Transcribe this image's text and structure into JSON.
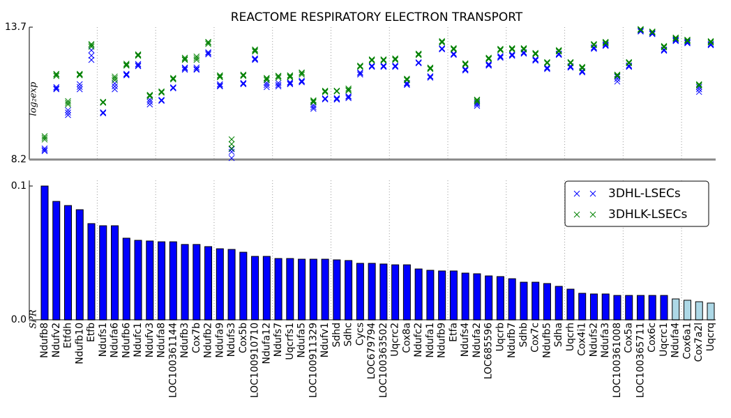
{
  "chart_data": [
    {
      "type": "scatter",
      "title": "REACTOME RESPIRATORY ELECTRON TRANSPORT",
      "ylabel": "log₂exp",
      "ylim": [
        8.2,
        13.7
      ],
      "yticks": [
        8.2,
        13.7
      ],
      "legend": "upper right",
      "marker": "x",
      "series": [
        {
          "name": "3DHL-LSECs",
          "color": "#0000ff",
          "values": [
            [
              8.66,
              8.55,
              8.6
            ],
            [
              11.21,
              11.12,
              11.16
            ],
            [
              10.25,
              10.05,
              10.15
            ],
            [
              11.33,
              11.12,
              11.22
            ],
            [
              12.74,
              12.34,
              12.52
            ],
            [
              10.14,
              10.12,
              10.16
            ],
            [
              11.36,
              11.12,
              11.24
            ],
            [
              11.73,
              11.7,
              11.76
            ],
            [
              12.17,
              12.08,
              12.12
            ],
            [
              10.49,
              10.69,
              10.6
            ],
            [
              10.66,
              10.68,
              10.64
            ],
            [
              11.18,
              11.16,
              11.2
            ],
            [
              12.02,
              11.93,
              11.98
            ],
            [
              12.02,
              11.93,
              11.96
            ],
            [
              12.66,
              12.57,
              12.62
            ],
            [
              11.33,
              11.24,
              11.28
            ],
            [
              8.63,
              8.52,
              8.26
            ],
            [
              11.36,
              11.33,
              11.38
            ],
            [
              12.4,
              12.34,
              12.37
            ],
            [
              11.21,
              11.38,
              11.3
            ],
            [
              11.24,
              11.38,
              11.3
            ],
            [
              11.33,
              11.41,
              11.37
            ],
            [
              11.41,
              11.47,
              11.44
            ],
            [
              10.31,
              10.46,
              10.38
            ],
            [
              10.72,
              10.7,
              10.74
            ],
            [
              10.69,
              10.75,
              10.72
            ],
            [
              10.75,
              10.83,
              10.8
            ],
            [
              11.82,
              11.73,
              11.78
            ],
            [
              12.08,
              12.05,
              12.1
            ],
            [
              12.08,
              12.05,
              12.1
            ],
            [
              12.08,
              12.05,
              12.1
            ],
            [
              11.3,
              11.38,
              11.34
            ],
            [
              12.22,
              12.2,
              12.24
            ],
            [
              11.64,
              11.6,
              11.66
            ],
            [
              12.8,
              12.78,
              12.82
            ],
            [
              12.57,
              12.55,
              12.6
            ],
            [
              11.93,
              11.9,
              11.96
            ],
            [
              10.43,
              10.55,
              10.5
            ],
            [
              12.14,
              12.1,
              12.17
            ],
            [
              12.46,
              12.43,
              12.5
            ],
            [
              12.54,
              12.51,
              12.57
            ],
            [
              12.63,
              12.6,
              12.66
            ],
            [
              12.34,
              12.31,
              12.37
            ],
            [
              11.99,
              11.96,
              12.02
            ],
            [
              12.57,
              12.55,
              12.6
            ],
            [
              12.05,
              12.02,
              12.08
            ],
            [
              11.85,
              11.82,
              11.88
            ],
            [
              12.83,
              12.8,
              12.86
            ],
            [
              12.95,
              12.92,
              12.98
            ],
            [
              11.44,
              11.64,
              11.55
            ],
            [
              12.11,
              12.05,
              12.08
            ],
            [
              13.55,
              13.52,
              13.58
            ],
            [
              13.44,
              13.41,
              13.47
            ],
            [
              12.77,
              12.72,
              12.74
            ],
            [
              13.15,
              13.12,
              13.18
            ],
            [
              13.06,
              13.03,
              13.09
            ],
            [
              11.01,
              11.21,
              11.12
            ],
            [
              12.98,
              12.95,
              13.0
            ]
          ]
        },
        {
          "name": "3DHLK-LSECs",
          "color": "#008000",
          "values": [
            [
              9.17,
              9.03,
              9.1
            ],
            [
              11.76,
              11.67,
              11.72
            ],
            [
              10.63,
              10.49,
              10.56
            ],
            [
              11.76,
              11.7,
              11.73
            ],
            [
              13.0,
              12.89,
              12.95
            ],
            [
              10.58,
              10.56,
              10.6
            ],
            [
              11.65,
              11.5,
              11.58
            ],
            [
              12.14,
              12.1,
              12.18
            ],
            [
              12.57,
              12.51,
              12.54
            ],
            [
              10.89,
              10.83,
              10.86
            ],
            [
              11.03,
              10.98,
              11.0
            ],
            [
              11.56,
              11.53,
              11.59
            ],
            [
              12.43,
              12.34,
              12.38
            ],
            [
              12.48,
              12.34,
              12.41
            ],
            [
              13.09,
              13.0,
              13.05
            ],
            [
              11.7,
              11.62,
              11.66
            ],
            [
              9.04,
              8.84,
              8.66
            ],
            [
              11.7,
              11.67,
              11.73
            ],
            [
              12.77,
              12.69,
              12.73
            ],
            [
              11.59,
              11.5,
              11.55
            ],
            [
              11.65,
              11.6,
              11.68
            ],
            [
              11.7,
              11.62,
              11.66
            ],
            [
              11.82,
              11.73,
              11.78
            ],
            [
              10.66,
              10.58,
              10.62
            ],
            [
              11.03,
              11.0,
              11.06
            ],
            [
              11.03,
              11.06,
              11.05
            ],
            [
              11.15,
              11.06,
              11.1
            ],
            [
              12.08,
              12.05,
              12.1
            ],
            [
              12.34,
              12.31,
              12.36
            ],
            [
              12.34,
              12.31,
              12.36
            ],
            [
              12.37,
              12.34,
              12.4
            ],
            [
              11.53,
              11.5,
              11.56
            ],
            [
              12.57,
              12.54,
              12.6
            ],
            [
              11.99,
              11.96,
              12.02
            ],
            [
              13.09,
              13.06,
              13.12
            ],
            [
              12.8,
              12.77,
              12.83
            ],
            [
              12.17,
              12.14,
              12.2
            ],
            [
              10.69,
              10.6,
              10.65
            ],
            [
              12.4,
              12.37,
              12.43
            ],
            [
              12.77,
              12.74,
              12.8
            ],
            [
              12.8,
              12.77,
              12.83
            ],
            [
              12.8,
              12.77,
              12.83
            ],
            [
              12.6,
              12.57,
              12.63
            ],
            [
              12.22,
              12.2,
              12.25
            ],
            [
              12.72,
              12.69,
              12.75
            ],
            [
              12.22,
              12.2,
              12.25
            ],
            [
              12.02,
              11.99,
              12.05
            ],
            [
              12.98,
              12.95,
              13.0
            ],
            [
              13.06,
              13.03,
              13.09
            ],
            [
              11.7,
              11.67,
              11.73
            ],
            [
              12.22,
              12.2,
              12.25
            ],
            [
              13.58,
              13.6,
              13.62
            ],
            [
              13.5,
              13.48,
              13.52
            ],
            [
              12.89,
              12.86,
              12.92
            ],
            [
              13.24,
              13.21,
              13.27
            ],
            [
              13.15,
              13.12,
              13.18
            ],
            [
              11.3,
              11.27,
              11.33
            ],
            [
              13.09,
              13.06,
              13.12
            ]
          ]
        }
      ]
    },
    {
      "type": "bar",
      "ylabel": "SPR",
      "ylim": [
        0,
        0.1
      ],
      "yticks": [
        {
          "value": 0,
          "label": "0.0"
        },
        0.1
      ],
      "categories": [
        "Ndufb8",
        "Ndufv2",
        "Etfdh",
        "Ndufb10",
        "Etfb",
        "Ndufs1",
        "Ndufa6",
        "Ndufb6",
        "Ndufc1",
        "Ndufv3",
        "Ndufa8",
        "LOC100361144",
        "Ndufb3",
        "Cox7b",
        "Ndufb2",
        "Ndufa9",
        "Ndufs3",
        "Cox5b",
        "LOC100910710",
        "Ndufa12",
        "Ndufs7",
        "Uqcrfs1",
        "Ndufa5",
        "LOC100911329",
        "Ndufv1",
        "Sdhd",
        "Sdhc",
        "Cycs",
        "LOC679794",
        "LOC100363502",
        "Uqcrc2",
        "Cox8a",
        "Ndufc2",
        "Ndufa1",
        "Ndufb9",
        "Etfa",
        "Ndufs4",
        "Ndufa2",
        "LOC685596",
        "Uqcrb",
        "Ndufb7",
        "Sdhb",
        "Cox7c",
        "Ndufb5",
        "Sdha",
        "Uqcrh",
        "Cox4i1",
        "Ndufs2",
        "Ndufa3",
        "LOC100361008",
        "Cox5a",
        "LOC100365711",
        "Cox6c",
        "Uqcrc1",
        "Ndufa4",
        "Cox6a1",
        "Cox7a2l",
        "Uqcrq"
      ],
      "values": [
        0.1,
        0.0885,
        0.0854,
        0.0823,
        0.0719,
        0.0703,
        0.0703,
        0.061,
        0.0594,
        0.0589,
        0.0583,
        0.0583,
        0.0563,
        0.0563,
        0.0547,
        0.0531,
        0.0526,
        0.0505,
        0.0474,
        0.0474,
        0.0458,
        0.0458,
        0.0453,
        0.0453,
        0.0453,
        0.0448,
        0.0443,
        0.0422,
        0.0422,
        0.0417,
        0.0411,
        0.0411,
        0.038,
        0.037,
        0.0365,
        0.0365,
        0.0349,
        0.0344,
        0.0328,
        0.0323,
        0.0307,
        0.0281,
        0.0281,
        0.0271,
        0.025,
        0.0229,
        0.0198,
        0.0193,
        0.0193,
        0.0182,
        0.0182,
        0.0182,
        0.0182,
        0.0182,
        0.0156,
        0.0146,
        0.0135,
        0.0125
      ],
      "colors": [
        "#0000ff",
        "#0000ff",
        "#0000ff",
        "#0000ff",
        "#0000ff",
        "#0000ff",
        "#0000ff",
        "#0000ff",
        "#0000ff",
        "#0000ff",
        "#0000ff",
        "#0000ff",
        "#0000ff",
        "#0000ff",
        "#0000ff",
        "#0000ff",
        "#0000ff",
        "#0000ff",
        "#0000ff",
        "#0000ff",
        "#0000ff",
        "#0000ff",
        "#0000ff",
        "#0000ff",
        "#0000ff",
        "#0000ff",
        "#0000ff",
        "#0000ff",
        "#0000ff",
        "#0000ff",
        "#0000ff",
        "#0000ff",
        "#0000ff",
        "#0000ff",
        "#0000ff",
        "#0000ff",
        "#0000ff",
        "#0000ff",
        "#0000ff",
        "#0000ff",
        "#0000ff",
        "#0000ff",
        "#0000ff",
        "#0000ff",
        "#0000ff",
        "#0000ff",
        "#0000ff",
        "#0000ff",
        "#0000ff",
        "#0000ff",
        "#0000ff",
        "#0000ff",
        "#0000ff",
        "#0000ff",
        "#add8e6",
        "#add8e6",
        "#add8e6",
        "#add8e6"
      ]
    }
  ]
}
